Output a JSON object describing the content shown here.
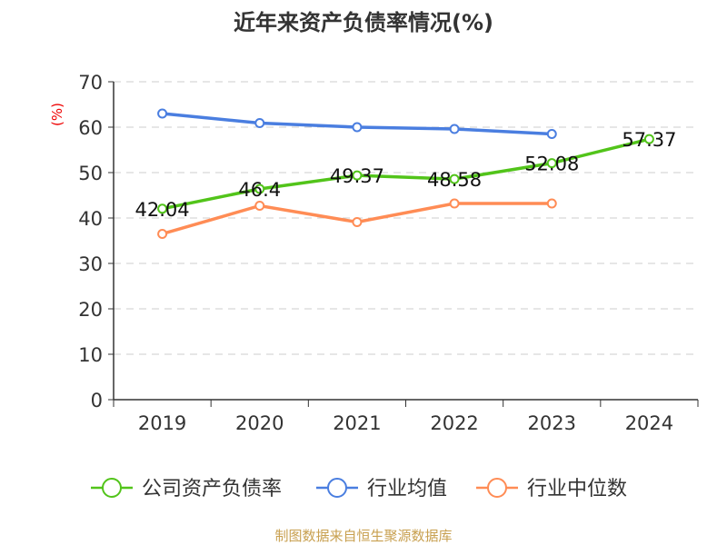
{
  "chart_data": {
    "type": "line",
    "title": "近年来资产负债率情况(%)",
    "ylabel": "(%)",
    "categories": [
      "2019",
      "2020",
      "2021",
      "2022",
      "2023",
      "2024"
    ],
    "ylim": [
      0,
      70
    ],
    "yticks": [
      0,
      10,
      20,
      30,
      40,
      50,
      60,
      70
    ],
    "grid": true,
    "legend_position": "bottom",
    "series": [
      {
        "name": "公司资产负债率",
        "color": "#52c41a",
        "values": [
          42.04,
          46.4,
          49.37,
          48.58,
          52.08,
          57.37
        ],
        "labels": [
          "42.04",
          "46.4",
          "49.37",
          "48.58",
          "52.08",
          "57.37"
        ]
      },
      {
        "name": "行业均值",
        "color": "#4a7ee0",
        "values": [
          63.0,
          60.9,
          60.0,
          59.6,
          58.5,
          null
        ]
      },
      {
        "name": "行业中位数",
        "color": "#ff8c55",
        "values": [
          36.5,
          42.7,
          39.1,
          43.2,
          43.2,
          null
        ]
      }
    ]
  },
  "source": "制图数据来自恒生聚源数据库"
}
